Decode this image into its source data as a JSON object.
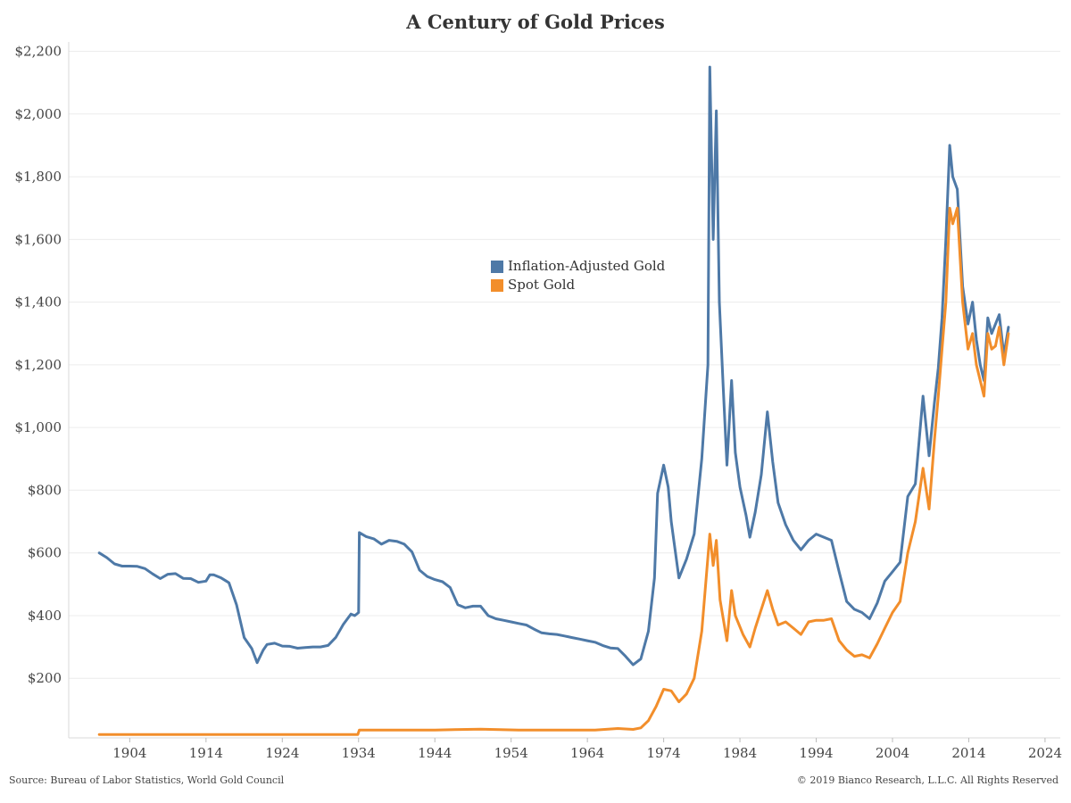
{
  "chart_data": {
    "type": "line",
    "title": "A Century of Gold Prices",
    "xlabel": "",
    "ylabel": "",
    "xlim": [
      1896,
      2026
    ],
    "ylim": [
      10,
      2230
    ],
    "x_ticks": [
      1904,
      1914,
      1924,
      1934,
      1944,
      1954,
      1964,
      1974,
      1984,
      1994,
      2004,
      2014,
      2024
    ],
    "y_ticks": [
      200,
      400,
      600,
      800,
      1000,
      1200,
      1400,
      1600,
      1800,
      2000,
      2200
    ],
    "y_tick_labels": [
      "$200",
      "$400",
      "$600",
      "$800",
      "$1,000",
      "$1,200",
      "$1,400",
      "$1,600",
      "$1,800",
      "$2,000",
      "$2,200"
    ],
    "grid": "horizontal",
    "legend_position": "center",
    "series": [
      {
        "name": "Inflation-Adjusted Gold",
        "color": "#4e79a7",
        "points": [
          [
            1900,
            600
          ],
          [
            1901,
            585
          ],
          [
            1902,
            565
          ],
          [
            1903,
            558
          ],
          [
            1904,
            558
          ],
          [
            1905,
            557
          ],
          [
            1906,
            550
          ],
          [
            1907,
            533
          ],
          [
            1908,
            518
          ],
          [
            1909,
            532
          ],
          [
            1910,
            534
          ],
          [
            1911,
            519
          ],
          [
            1912,
            518
          ],
          [
            1913,
            506
          ],
          [
            1914,
            510
          ],
          [
            1914.5,
            530
          ],
          [
            1915,
            530
          ],
          [
            1916,
            520
          ],
          [
            1917,
            505
          ],
          [
            1918,
            435
          ],
          [
            1919,
            330
          ],
          [
            1920,
            295
          ],
          [
            1920.7,
            250
          ],
          [
            1921.5,
            290
          ],
          [
            1922,
            308
          ],
          [
            1923,
            312
          ],
          [
            1924,
            303
          ],
          [
            1925,
            302
          ],
          [
            1926,
            296
          ],
          [
            1927,
            298
          ],
          [
            1928,
            300
          ],
          [
            1929,
            300
          ],
          [
            1930,
            305
          ],
          [
            1931,
            330
          ],
          [
            1932,
            372
          ],
          [
            1933,
            405
          ],
          [
            1933.5,
            400
          ],
          [
            1934,
            410
          ],
          [
            1934.1,
            665
          ],
          [
            1935,
            652
          ],
          [
            1936,
            645
          ],
          [
            1937,
            628
          ],
          [
            1938,
            640
          ],
          [
            1939,
            637
          ],
          [
            1940,
            628
          ],
          [
            1941,
            603
          ],
          [
            1942,
            545
          ],
          [
            1943,
            525
          ],
          [
            1944,
            515
          ],
          [
            1945,
            508
          ],
          [
            1946,
            490
          ],
          [
            1947,
            435
          ],
          [
            1948,
            425
          ],
          [
            1949,
            430
          ],
          [
            1950,
            430
          ],
          [
            1951,
            400
          ],
          [
            1952,
            390
          ],
          [
            1953,
            385
          ],
          [
            1954,
            380
          ],
          [
            1955,
            375
          ],
          [
            1956,
            370
          ],
          [
            1957,
            357
          ],
          [
            1958,
            345
          ],
          [
            1959,
            342
          ],
          [
            1960,
            340
          ],
          [
            1961,
            335
          ],
          [
            1962,
            330
          ],
          [
            1963,
            325
          ],
          [
            1964,
            320
          ],
          [
            1965,
            315
          ],
          [
            1966,
            305
          ],
          [
            1967,
            297
          ],
          [
            1968,
            295
          ],
          [
            1969,
            270
          ],
          [
            1970,
            243
          ],
          [
            1971,
            262
          ],
          [
            1972,
            350
          ],
          [
            1972.8,
            520
          ],
          [
            1973.2,
            790
          ],
          [
            1974,
            880
          ],
          [
            1974.6,
            810
          ],
          [
            1975,
            700
          ],
          [
            1976,
            520
          ],
          [
            1977,
            580
          ],
          [
            1978,
            660
          ],
          [
            1979,
            900
          ],
          [
            1979.8,
            1200
          ],
          [
            1980.05,
            2150
          ],
          [
            1980.5,
            1600
          ],
          [
            1980.9,
            2010
          ],
          [
            1981.3,
            1400
          ],
          [
            1981.8,
            1130
          ],
          [
            1982.3,
            880
          ],
          [
            1982.9,
            1150
          ],
          [
            1983.4,
            920
          ],
          [
            1984,
            810
          ],
          [
            1984.8,
            720
          ],
          [
            1985.3,
            650
          ],
          [
            1986,
            730
          ],
          [
            1986.8,
            850
          ],
          [
            1987.6,
            1050
          ],
          [
            1988.3,
            890
          ],
          [
            1989,
            760
          ],
          [
            1990,
            690
          ],
          [
            1991,
            640
          ],
          [
            1992,
            610
          ],
          [
            1993,
            640
          ],
          [
            1994,
            660
          ],
          [
            1995,
            650
          ],
          [
            1996,
            640
          ],
          [
            1997,
            540
          ],
          [
            1998,
            445
          ],
          [
            1999,
            420
          ],
          [
            2000,
            410
          ],
          [
            2001,
            390
          ],
          [
            2002,
            440
          ],
          [
            2003,
            510
          ],
          [
            2004,
            540
          ],
          [
            2005,
            570
          ],
          [
            2006,
            780
          ],
          [
            2007,
            820
          ],
          [
            2008,
            1100
          ],
          [
            2008.8,
            910
          ],
          [
            2009.5,
            1080
          ],
          [
            2010,
            1190
          ],
          [
            2010.5,
            1350
          ],
          [
            2011,
            1600
          ],
          [
            2011.5,
            1900
          ],
          [
            2011.9,
            1800
          ],
          [
            2012.5,
            1760
          ],
          [
            2013.2,
            1450
          ],
          [
            2013.9,
            1330
          ],
          [
            2014.5,
            1400
          ],
          [
            2015,
            1280
          ],
          [
            2015.5,
            1200
          ],
          [
            2016,
            1150
          ],
          [
            2016.5,
            1350
          ],
          [
            2017,
            1300
          ],
          [
            2017.5,
            1330
          ],
          [
            2018,
            1360
          ],
          [
            2018.6,
            1230
          ],
          [
            2019.2,
            1320
          ]
        ]
      },
      {
        "name": "Spot Gold",
        "color": "#f28e2b",
        "points": [
          [
            1900,
            20.67
          ],
          [
            1933.9,
            20.67
          ],
          [
            1934.1,
            35
          ],
          [
            1944,
            35
          ],
          [
            1950,
            38
          ],
          [
            1955,
            35
          ],
          [
            1965,
            35
          ],
          [
            1968,
            40
          ],
          [
            1970,
            37
          ],
          [
            1971,
            42
          ],
          [
            1972,
            65
          ],
          [
            1973,
            110
          ],
          [
            1974,
            165
          ],
          [
            1975,
            160
          ],
          [
            1976,
            125
          ],
          [
            1977,
            150
          ],
          [
            1978,
            200
          ],
          [
            1979,
            350
          ],
          [
            1980.05,
            660
          ],
          [
            1980.5,
            560
          ],
          [
            1980.9,
            640
          ],
          [
            1981.4,
            450
          ],
          [
            1982.3,
            320
          ],
          [
            1982.9,
            480
          ],
          [
            1983.4,
            400
          ],
          [
            1984.4,
            340
          ],
          [
            1985.3,
            300
          ],
          [
            1986,
            360
          ],
          [
            1987.6,
            480
          ],
          [
            1988.3,
            420
          ],
          [
            1989,
            370
          ],
          [
            1990,
            380
          ],
          [
            1991,
            360
          ],
          [
            1992,
            340
          ],
          [
            1993,
            380
          ],
          [
            1994,
            385
          ],
          [
            1995,
            385
          ],
          [
            1996,
            390
          ],
          [
            1997,
            320
          ],
          [
            1998,
            290
          ],
          [
            1999,
            270
          ],
          [
            2000,
            275
          ],
          [
            2001,
            265
          ],
          [
            2002,
            310
          ],
          [
            2003,
            360
          ],
          [
            2004,
            410
          ],
          [
            2005,
            445
          ],
          [
            2006,
            600
          ],
          [
            2007,
            700
          ],
          [
            2008,
            870
          ],
          [
            2008.8,
            740
          ],
          [
            2009.5,
            960
          ],
          [
            2010,
            1100
          ],
          [
            2010.5,
            1250
          ],
          [
            2011,
            1400
          ],
          [
            2011.5,
            1700
          ],
          [
            2011.9,
            1650
          ],
          [
            2012.5,
            1700
          ],
          [
            2013.2,
            1400
          ],
          [
            2013.9,
            1250
          ],
          [
            2014.5,
            1300
          ],
          [
            2015,
            1200
          ],
          [
            2015.5,
            1150
          ],
          [
            2016,
            1100
          ],
          [
            2016.5,
            1300
          ],
          [
            2017,
            1250
          ],
          [
            2017.5,
            1260
          ],
          [
            2018,
            1320
          ],
          [
            2018.6,
            1200
          ],
          [
            2019.2,
            1300
          ]
        ]
      }
    ]
  },
  "footer": {
    "source": "Source: Bureau of Labor Statistics, World Gold Council",
    "copyright": "© 2019 Bianco Research, L.L.C. All Rights Reserved"
  }
}
